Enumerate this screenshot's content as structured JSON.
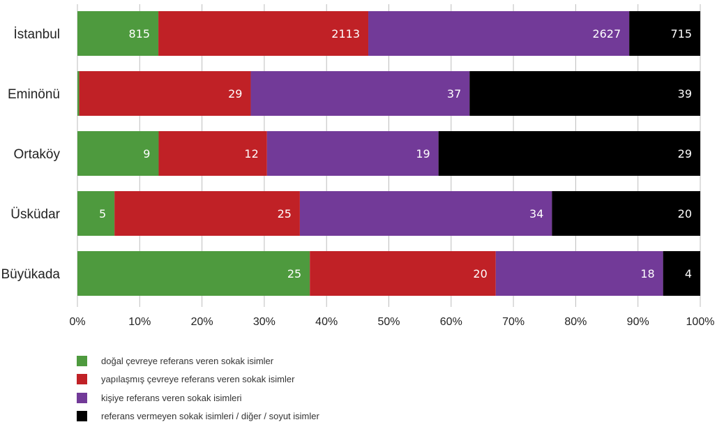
{
  "chart_data": {
    "type": "bar",
    "orientation": "horizontal",
    "stacked": "percent",
    "categories": [
      "İstanbul",
      "Eminönü",
      "Ortaköy",
      "Üsküdar",
      "Büyükada"
    ],
    "series": [
      {
        "name": "doğal çevreye referans veren sokak isimler",
        "color": "#4e9a3e",
        "values": [
          815,
          0.3,
          9,
          5,
          25
        ],
        "labels": [
          "815",
          "",
          "9",
          "5",
          "25"
        ]
      },
      {
        "name": "yapılaşmış çevreye referans veren sokak isimler",
        "color": "#c02126",
        "values": [
          2113,
          29,
          12,
          25,
          20
        ],
        "labels": [
          "2113",
          "29",
          "12",
          "25",
          "20"
        ]
      },
      {
        "name": "kişiye referans veren sokak isimleri",
        "color": "#723a98",
        "values": [
          2627,
          37,
          19,
          34,
          18
        ],
        "labels": [
          "2627",
          "37",
          "19",
          "34",
          "18"
        ]
      },
      {
        "name": "referans vermeyen sokak isimleri / diğer / soyut isimler",
        "color": "#000000",
        "values": [
          715,
          39,
          29,
          20,
          4
        ],
        "labels": [
          "715",
          "39",
          "29",
          "20",
          "4"
        ]
      }
    ],
    "xticks": [
      "0%",
      "10%",
      "20%",
      "30%",
      "40%",
      "50%",
      "60%",
      "70%",
      "80%",
      "90%",
      "100%"
    ],
    "xlim": [
      0,
      100
    ],
    "grid": true,
    "legend_position": "bottom-left"
  }
}
